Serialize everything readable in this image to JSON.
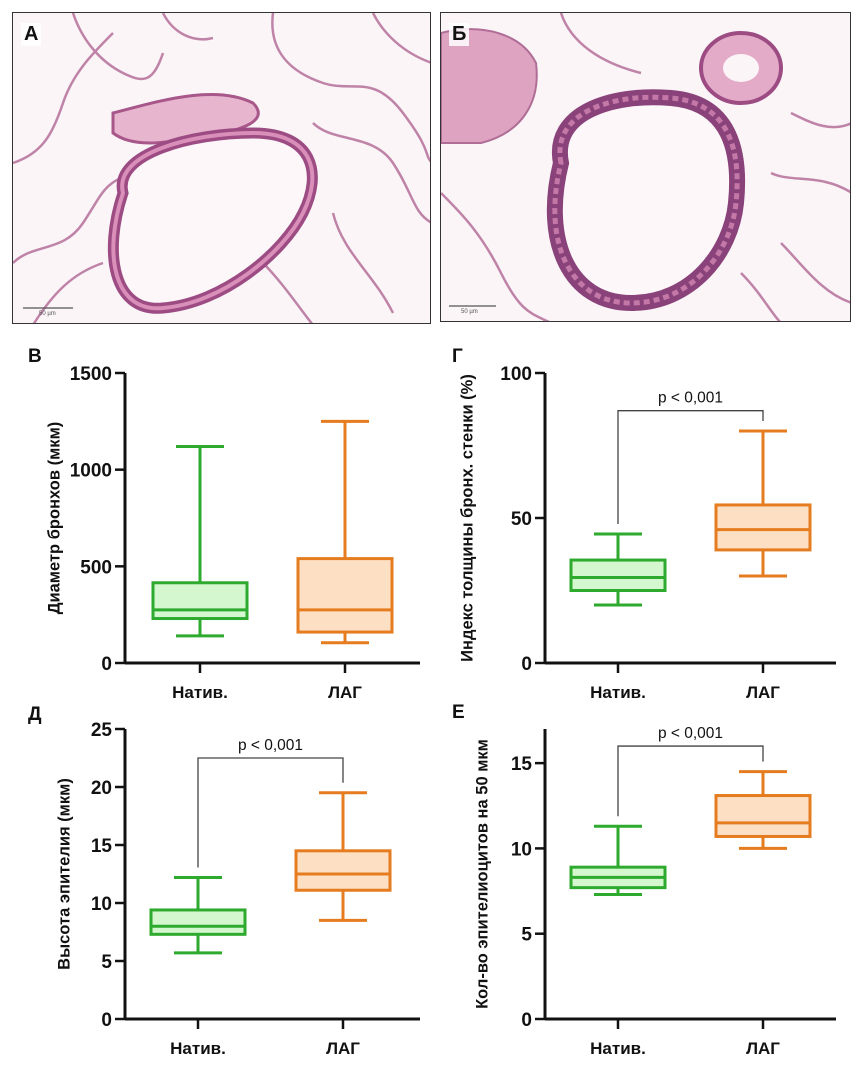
{
  "figure": {
    "micrographs": [
      {
        "letter": "А",
        "scale_bar_label": "50 µm",
        "description": "lung tissue, native bronchus, H&E stain"
      },
      {
        "letter": "Б",
        "scale_bar_label": "50 µm",
        "description": "lung tissue, LAH bronchus, H&E stain"
      }
    ]
  },
  "colors": {
    "native_stroke": "#2eaa2e",
    "native_fill": "#d4f7cf",
    "lah_stroke": "#e57c1f",
    "lah_fill": "#fde0c4",
    "axis": "#111111",
    "bracket": "#444444"
  },
  "chart_data": [
    {
      "letter": "В",
      "type": "boxplot",
      "title": "",
      "xlabel": "",
      "ylabel": "Диаметр бронхов (мкм)",
      "categories": [
        "Натив.",
        "ЛАГ"
      ],
      "ylim": [
        0,
        1500
      ],
      "yticks": [
        0,
        500,
        1000,
        1500
      ],
      "series": [
        {
          "name": "Натив.",
          "min": 140,
          "q1": 230,
          "median": 275,
          "q3": 415,
          "max": 1120
        },
        {
          "name": "ЛАГ",
          "min": 105,
          "q1": 160,
          "median": 275,
          "q3": 540,
          "max": 1250
        }
      ],
      "annotation": null
    },
    {
      "letter": "Г",
      "type": "boxplot",
      "title": "",
      "xlabel": "",
      "ylabel": "Индекс толщины бронх. стенки (%)",
      "categories": [
        "Натив.",
        "ЛАГ"
      ],
      "ylim": [
        0,
        100
      ],
      "yticks": [
        0,
        50,
        100
      ],
      "series": [
        {
          "name": "Натив.",
          "min": 20,
          "q1": 25,
          "median": 29.5,
          "q3": 35.5,
          "max": 44.5
        },
        {
          "name": "ЛАГ",
          "min": 30,
          "q1": 39,
          "median": 46,
          "q3": 54.5,
          "max": 80
        }
      ],
      "annotation": {
        "text": "p < 0,001",
        "level": 87
      }
    },
    {
      "letter": "Д",
      "type": "boxplot",
      "title": "",
      "xlabel": "",
      "ylabel": "Высота эпителия (мкм)",
      "categories": [
        "Натив.",
        "ЛАГ"
      ],
      "ylim": [
        0,
        25
      ],
      "yticks": [
        0,
        5,
        10,
        15,
        20,
        25
      ],
      "series": [
        {
          "name": "Натив.",
          "min": 5.7,
          "q1": 7.3,
          "median": 8.0,
          "q3": 9.4,
          "max": 12.2
        },
        {
          "name": "ЛАГ",
          "min": 8.5,
          "q1": 11.1,
          "median": 12.5,
          "q3": 14.5,
          "max": 19.5
        }
      ],
      "annotation": {
        "text": "p < 0,001",
        "level": 22.5
      }
    },
    {
      "letter": "Е",
      "type": "boxplot",
      "title": "",
      "xlabel": "",
      "ylabel": "Кол-во эпителиоцитов на 50 мкм",
      "categories": [
        "Натив.",
        "ЛАГ"
      ],
      "ylim": [
        0,
        17
      ],
      "yticks": [
        0,
        5,
        10,
        15
      ],
      "series": [
        {
          "name": "Натив.",
          "min": 7.3,
          "q1": 7.7,
          "median": 8.3,
          "q3": 8.9,
          "max": 11.3
        },
        {
          "name": "ЛАГ",
          "min": 10.0,
          "q1": 10.7,
          "median": 11.5,
          "q3": 13.1,
          "max": 14.5
        }
      ],
      "annotation": {
        "text": "p < 0,001",
        "level": 16.0
      }
    }
  ]
}
